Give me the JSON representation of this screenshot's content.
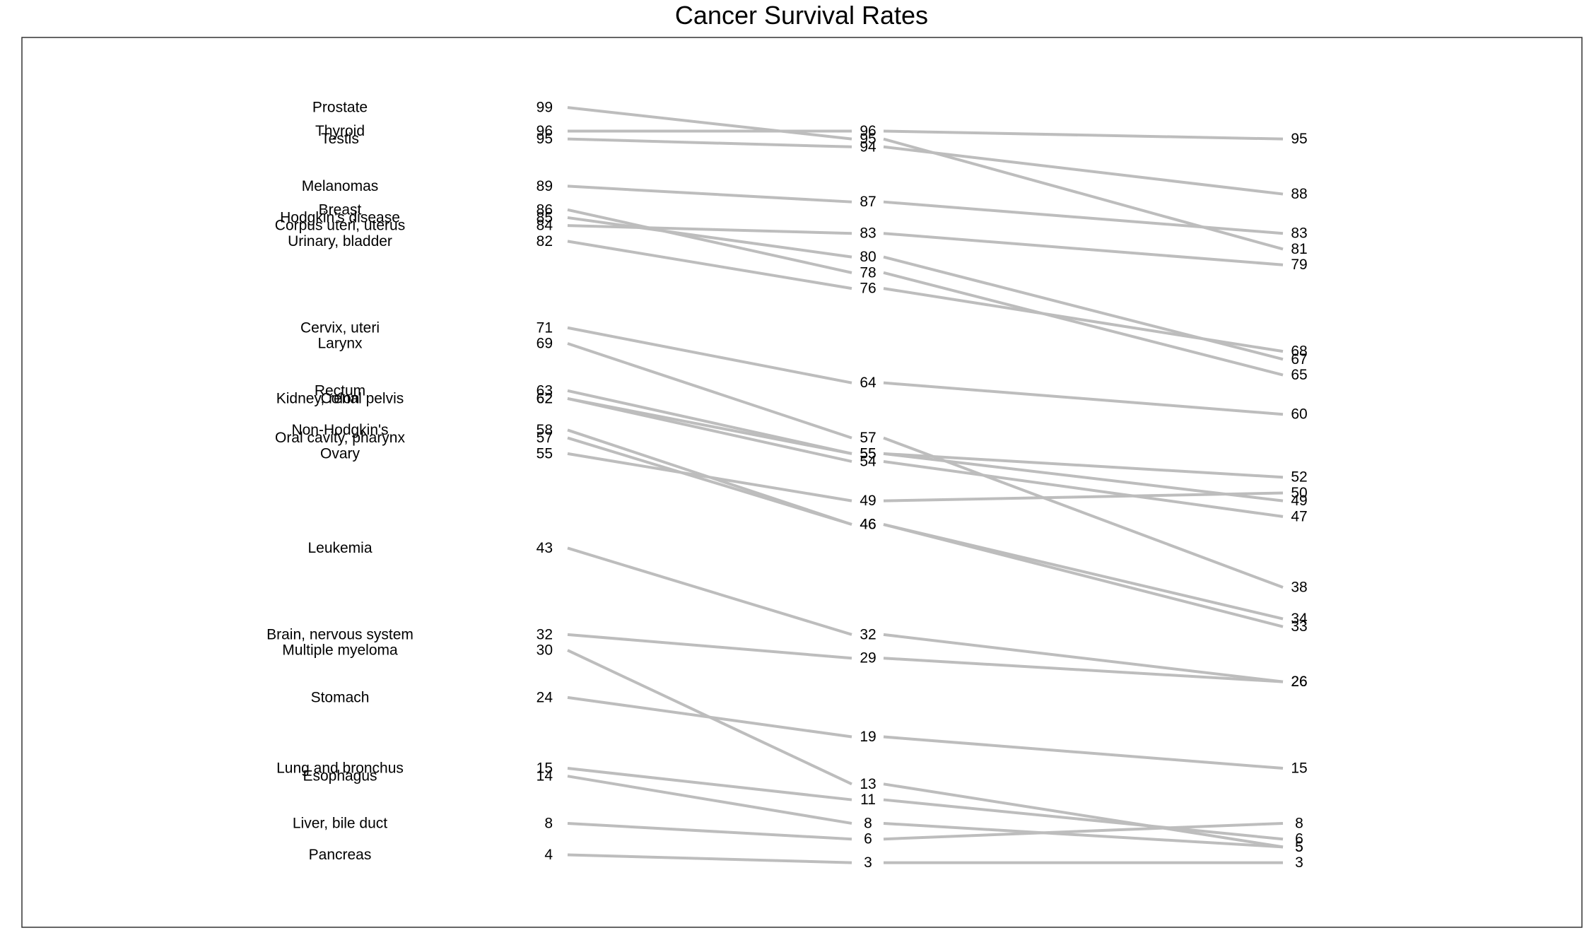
{
  "chart_data": {
    "type": "line",
    "title": "Cancer Survival Rates",
    "xlabel": "",
    "ylabel": "",
    "grid": false,
    "line_color": "#bdbdbd",
    "text_color": "#000000",
    "series": [
      {
        "name": "Prostate",
        "values": [
          99,
          95,
          81
        ]
      },
      {
        "name": "Thyroid",
        "values": [
          96,
          96,
          95
        ]
      },
      {
        "name": "Testis",
        "values": [
          95,
          94,
          88
        ]
      },
      {
        "name": "Melanomas",
        "values": [
          89,
          87,
          83
        ]
      },
      {
        "name": "Breast",
        "values": [
          86,
          78,
          65
        ]
      },
      {
        "name": "Hodgkin's disease",
        "values": [
          85,
          80,
          67
        ]
      },
      {
        "name": "Corpus uteri, uterus",
        "values": [
          84,
          83,
          79
        ]
      },
      {
        "name": "Urinary, bladder",
        "values": [
          82,
          76,
          68
        ]
      },
      {
        "name": "Cervix, uteri",
        "values": [
          71,
          64,
          60
        ]
      },
      {
        "name": "Larynx",
        "values": [
          69,
          57,
          38
        ]
      },
      {
        "name": "Rectum",
        "values": [
          63,
          55,
          49
        ]
      },
      {
        "name": "Kidney, renal pelvis",
        "values": [
          62,
          54,
          47
        ]
      },
      {
        "name": "Colon",
        "values": [
          62,
          55,
          52
        ]
      },
      {
        "name": "Non-Hodgkin's",
        "values": [
          58,
          46,
          34
        ]
      },
      {
        "name": "Oral cavity, pharynx",
        "values": [
          57,
          46,
          33
        ]
      },
      {
        "name": "Ovary",
        "values": [
          55,
          49,
          50
        ]
      },
      {
        "name": "Leukemia",
        "values": [
          43,
          32,
          26
        ]
      },
      {
        "name": "Brain, nervous system",
        "values": [
          32,
          29,
          26
        ]
      },
      {
        "name": "Multiple myeloma",
        "values": [
          30,
          13,
          5
        ]
      },
      {
        "name": "Stomach",
        "values": [
          24,
          19,
          15
        ]
      },
      {
        "name": "Lung and bronchus",
        "values": [
          15,
          11,
          6
        ]
      },
      {
        "name": "Esophagus",
        "values": [
          14,
          8,
          5
        ]
      },
      {
        "name": "Liver, bile duct",
        "values": [
          8,
          6,
          8
        ]
      },
      {
        "name": "Pancreas",
        "values": [
          4,
          3,
          3
        ]
      }
    ]
  }
}
